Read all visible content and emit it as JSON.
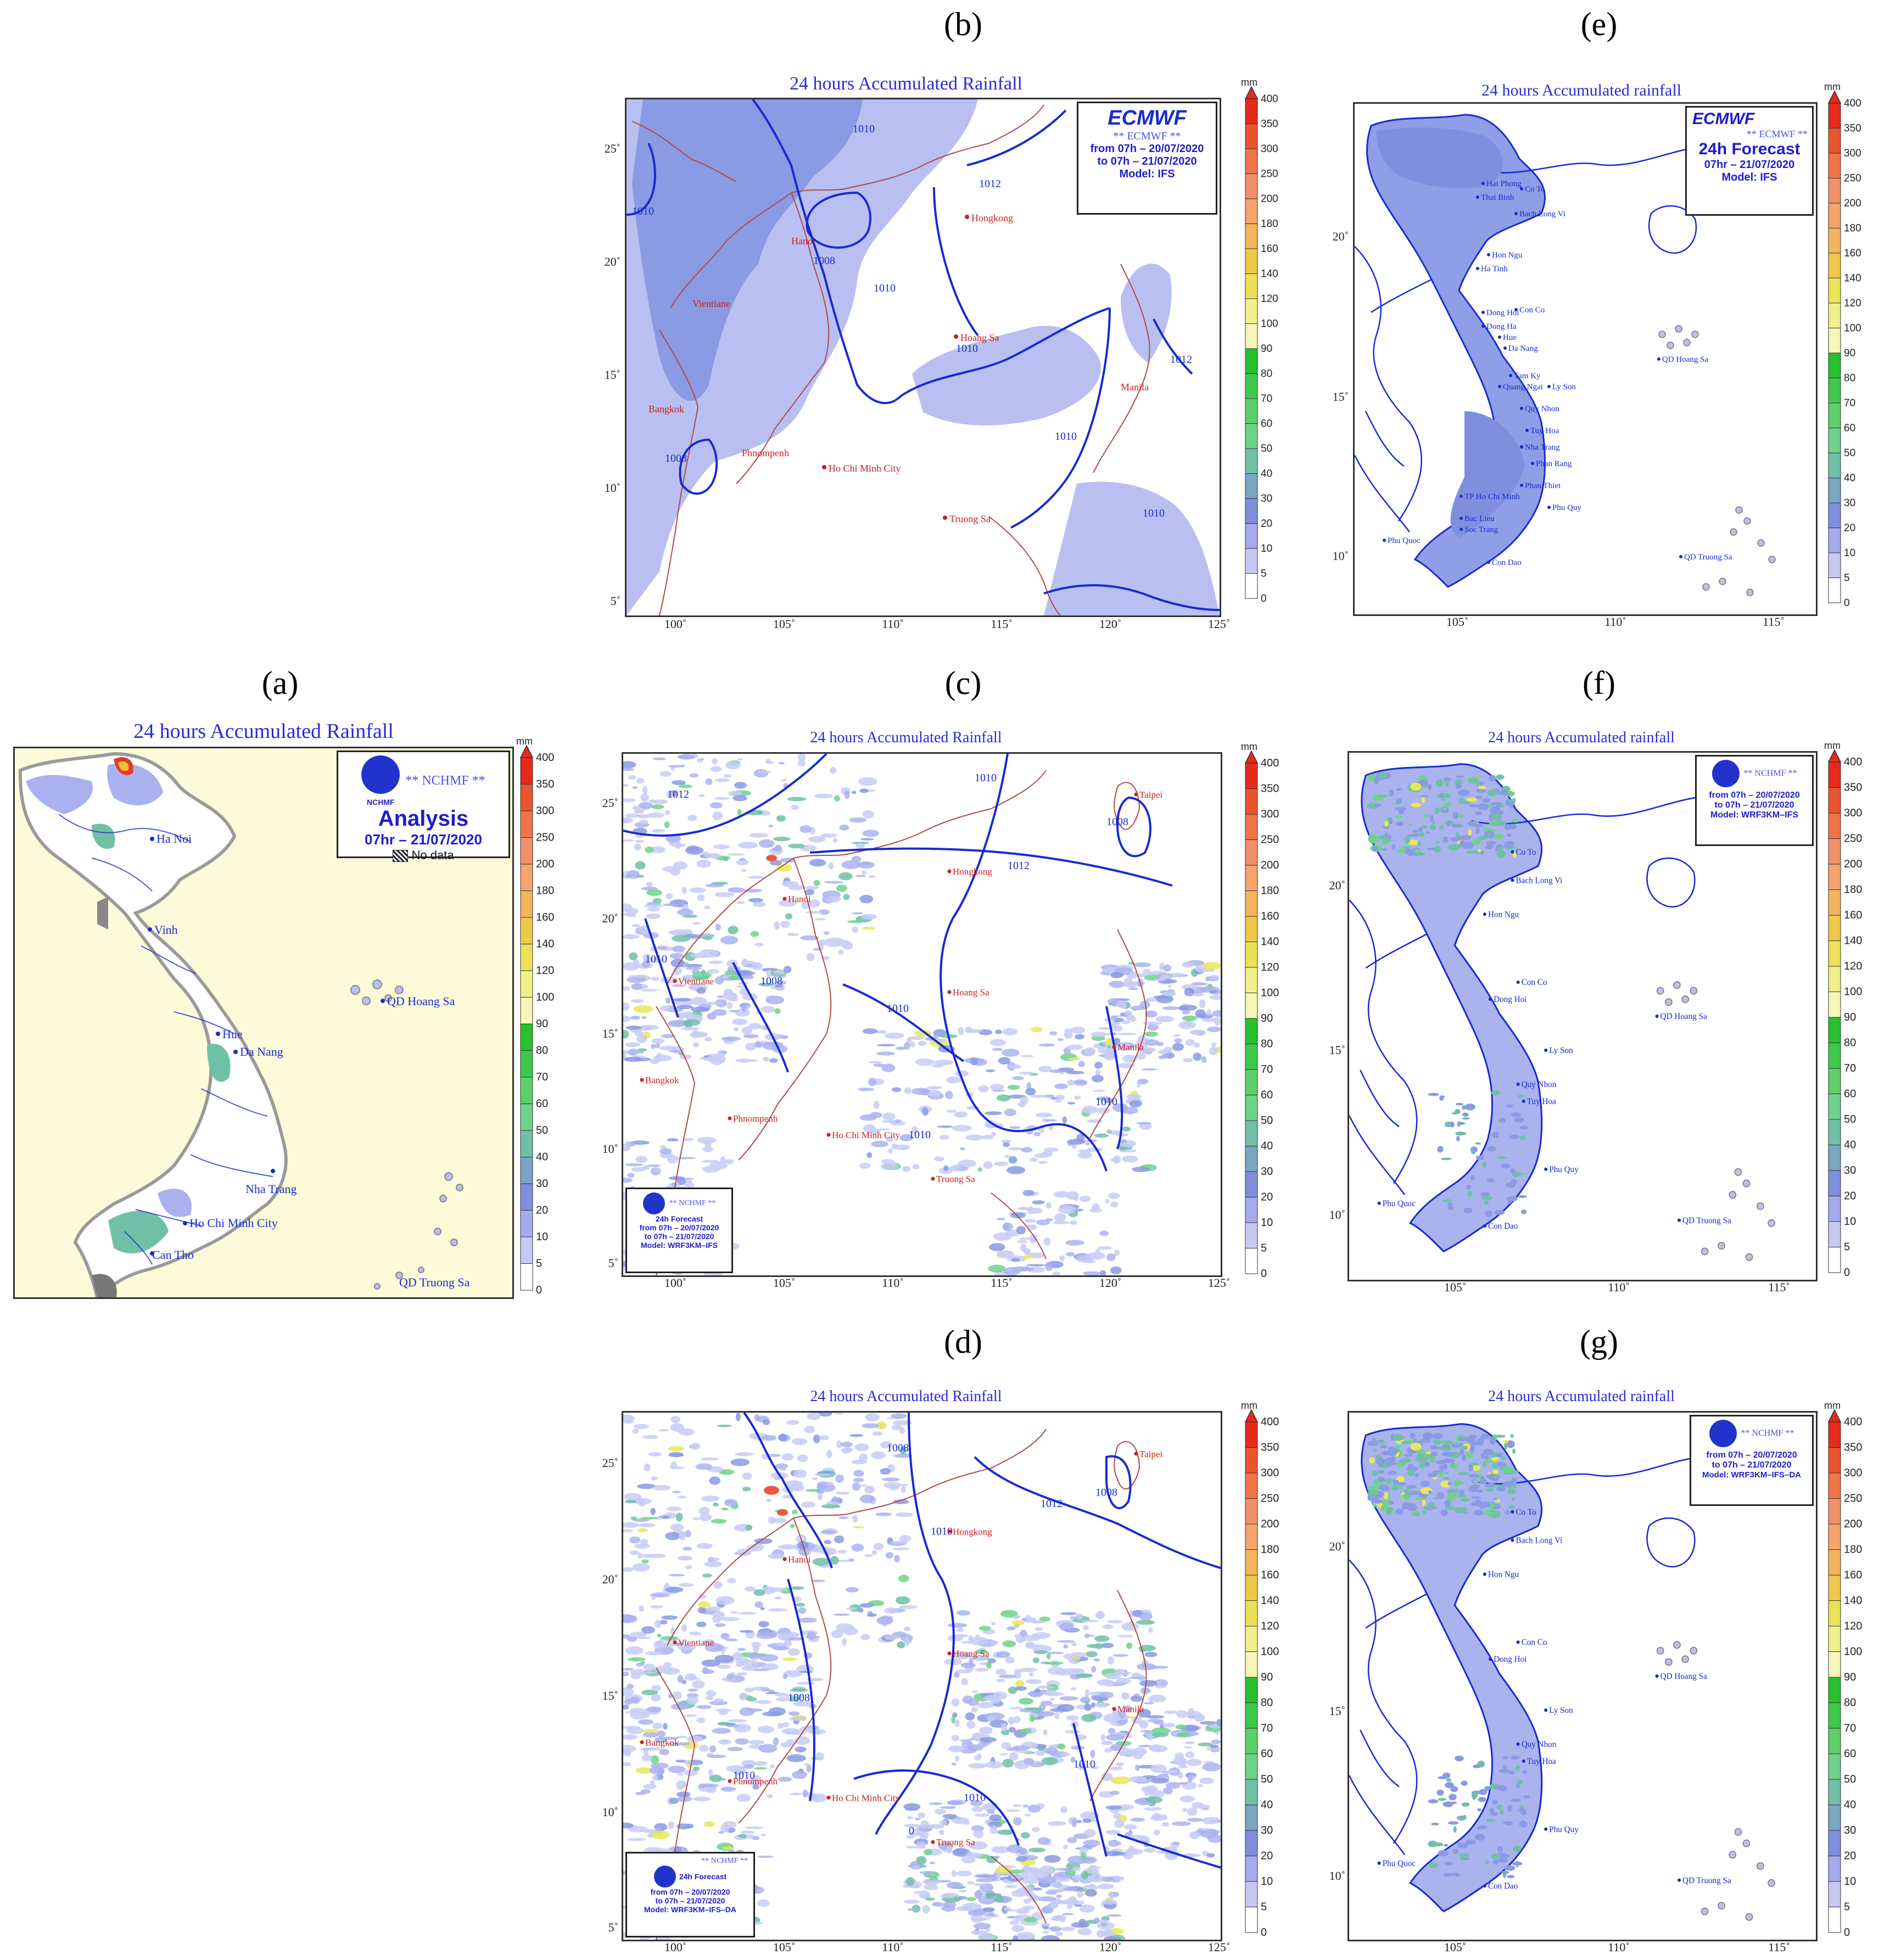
{
  "panels": {
    "a": {
      "letter": "(a)",
      "title": "24 hours Accumulated Rainfall",
      "org": "** NCHMF **",
      "logo_text": "NCHMF",
      "heading": "Analysis",
      "date": "07hr – 21/07/2020",
      "nodata": "No data",
      "places": [
        "Ha Noi",
        "Vinh",
        "Hue",
        "Da Nang",
        "Nha Trang",
        "Ho Chi Minh City",
        "Can Tho",
        "QD Hoang Sa",
        "QD Truong Sa"
      ]
    },
    "b": {
      "letter": "(b)",
      "title": "24 hours Accumulated Rainfall",
      "logo_text": "ECMWF",
      "org": "** ECMWF **",
      "lines": [
        "from 07h – 20/07/2020",
        "to 07h – 21/07/2020",
        "Model: IFS"
      ],
      "places": [
        "Hongkong",
        "Hanoi",
        "Vientiane",
        "Hoang Sa",
        "Manila",
        "Bangkok",
        "Phnompenh",
        "Ho Chi Minh City",
        "Truong Sa"
      ],
      "isobars": [
        "1010",
        "1012",
        "1010",
        "1008",
        "1010",
        "1010",
        "1012",
        "1008",
        "1010",
        "1010"
      ]
    },
    "c": {
      "letter": "(c)",
      "title": "24 hours Accumulated Rainfall",
      "org": "** NCHMF **",
      "logo_text": "NCHMF",
      "lines": [
        "24h Forecast",
        "from 07h – 20/07/2020",
        "to 07h – 21/07/2020",
        "Model: WRF3KM–IFS"
      ],
      "places": [
        "Taipei",
        "Hongkong",
        "Hanoi",
        "Vientiane",
        "Hoang Sa",
        "Manila",
        "Bangkok",
        "Phnompenh",
        "Ho Chi Minh City",
        "Truong Sa"
      ],
      "isobars": [
        "1010",
        "1012",
        "1012",
        "1008",
        "1010",
        "1008",
        "1010",
        "1010",
        "1010"
      ]
    },
    "d": {
      "letter": "(d)",
      "title": "24 hours Accumulated Rainfall",
      "org": "** NCHMF **",
      "logo_text": "NCHMF",
      "lines": [
        "24h Forecast",
        "from 07h – 20/07/2020",
        "to 07h – 21/07/2020",
        "Model: WRF3KM–IFS–DA"
      ],
      "places": [
        "Taipei",
        "Hongkong",
        "Hanoi",
        "Vientiane",
        "Hoang Sa",
        "Manila",
        "Bangkok",
        "Phnompenh",
        "Ho Chi Minh City",
        "Truong Sa"
      ],
      "isobars": [
        "1008",
        "1010",
        "1012",
        "1008",
        "1010",
        "1008",
        "1010",
        "1010",
        "0"
      ]
    },
    "e": {
      "letter": "(e)",
      "title": "24 hours Accumulated rainfall",
      "logo_text": "ECMWF",
      "org": "** ECMWF **",
      "lines": [
        "24h Forecast",
        "07hr – 21/07/2020",
        "Model: IFS"
      ],
      "places": [
        "Co To",
        "Hai Phong",
        "Thai Binh",
        "Bach Long Vi",
        "Hon Ngu",
        "Ha Tinh",
        "Con Co",
        "Dong Hoi",
        "Dong Ha",
        "Hue",
        "Da Nang",
        "Tam Ky",
        "Quang Ngai",
        "Ly Son",
        "Quy Nhon",
        "Tuy Hoa",
        "Nha Trang",
        "Phan Rang",
        "Phan Thiet",
        "TP Ho Chi Minh",
        "Phu Quy",
        "Bac Lieu",
        "Soc Trang",
        "Phu Quoc",
        "Con Dao",
        "QD Hoang Sa",
        "QD Truong Sa"
      ]
    },
    "f": {
      "letter": "(f)",
      "title": "24 hours Accumulated rainfall",
      "org": "** NCHMF **",
      "logo_text": "NCHMF",
      "lines": [
        "from 07h – 20/07/2020",
        "to 07h – 21/07/2020",
        "Model: WRF3KM–IFS"
      ],
      "places": [
        "Co To",
        "Bach Long Vi",
        "Hon Ngu",
        "Con Co",
        "Dong Hoi",
        "Ly Son",
        "Quy Nhon",
        "Tuy Hoa",
        "Phu Quy",
        "Phu Quoc",
        "Con Dao",
        "QD Hoang Sa",
        "QD Truong Sa"
      ]
    },
    "g": {
      "letter": "(g)",
      "title": "24 hours Accumulated rainfall",
      "org": "** NCHMF **",
      "logo_text": "NCHMF",
      "lines": [
        "from 07h – 20/07/2020",
        "to 07h – 21/07/2020",
        "Model: WRF3KM–IFS–DA"
      ],
      "places": [
        "Co To",
        "Bach Long Vi",
        "Hon Ngu",
        "Con Co",
        "Dong Hoi",
        "Ly Son",
        "Quy Nhon",
        "Tuy Hoa",
        "Phu Quy",
        "Phu Quoc",
        "Con Dao",
        "QD Hoang Sa",
        "QD Truong Sa"
      ]
    }
  },
  "axes": {
    "wide_x": [
      "100˚",
      "105˚",
      "110˚",
      "115˚",
      "120˚",
      "125˚"
    ],
    "wide_y": [
      "25˚",
      "20˚",
      "15˚",
      "10˚",
      "5˚"
    ],
    "vn_x": [
      "105˚",
      "110˚",
      "115˚"
    ],
    "vn_y": [
      "20˚",
      "15˚",
      "10˚"
    ]
  },
  "legend": {
    "unit": "mm",
    "levels": [
      "0",
      "5",
      "10",
      "20",
      "30",
      "40",
      "50",
      "60",
      "70",
      "80",
      "90",
      "100",
      "120",
      "140",
      "160",
      "180",
      "200",
      "250",
      "300",
      "350",
      "400"
    ],
    "colors": [
      "#ffffff",
      "#c8c8f5",
      "#a5aaee",
      "#7f8fdd",
      "#7aa6c4",
      "#70c0a8",
      "#6fd28a",
      "#5fcf6a",
      "#3ec94a",
      "#28c02e",
      "#f4f7b6",
      "#f0f08a",
      "#ede158",
      "#efc84a",
      "#f3b45c",
      "#f4a46c",
      "#f2906a",
      "#ef7448",
      "#eb5430",
      "#e52a1c"
    ]
  }
}
